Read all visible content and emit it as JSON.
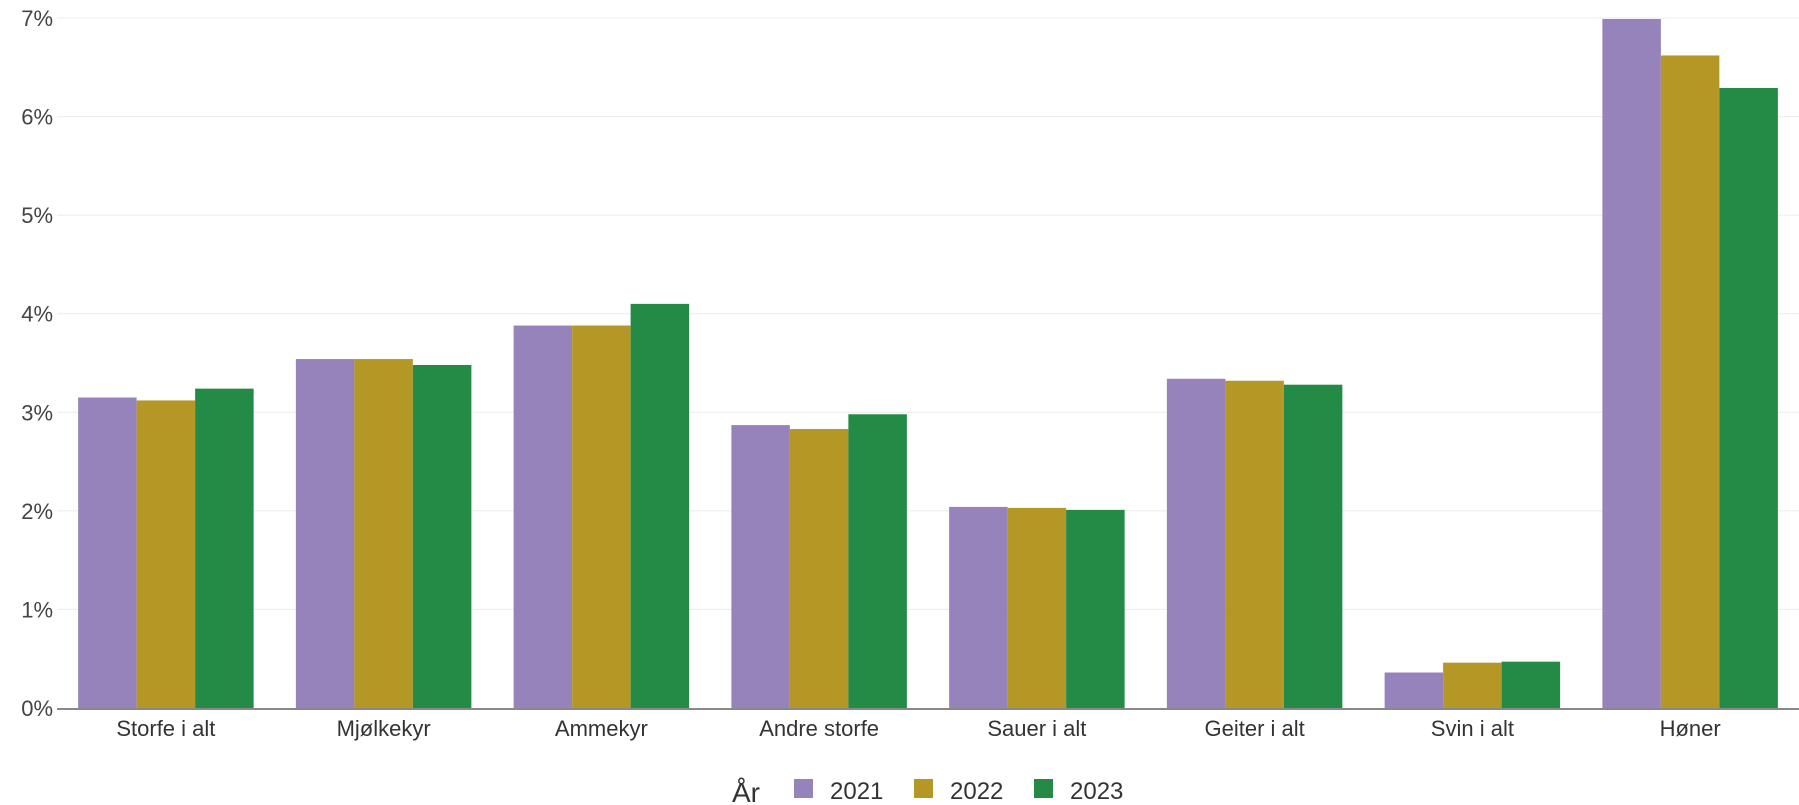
{
  "chart_data": {
    "type": "bar",
    "categories": [
      "Storfe i alt",
      "Mjølkekyr",
      "Ammekyr",
      "Andre storfe",
      "Sauer i alt",
      "Geiter i alt",
      "Svin i alt",
      "Høner"
    ],
    "series": [
      {
        "name": "2021",
        "color": "#9683bc",
        "values": [
          3.15,
          3.54,
          3.88,
          2.87,
          2.04,
          3.34,
          0.36,
          6.99
        ]
      },
      {
        "name": "2022",
        "color": "#b59726",
        "values": [
          3.12,
          3.54,
          3.88,
          2.83,
          2.03,
          3.32,
          0.46,
          6.62
        ]
      },
      {
        "name": "2023",
        "color": "#248b47",
        "values": [
          3.24,
          3.48,
          4.1,
          2.98,
          2.01,
          3.28,
          0.47,
          6.29
        ]
      }
    ],
    "ylim": [
      0,
      7
    ],
    "yticks": [
      "0%",
      "1%",
      "2%",
      "3%",
      "4%",
      "5%",
      "6%",
      "7%"
    ],
    "grid": true,
    "legend": {
      "title": "År",
      "placement": "bottom"
    },
    "xlabel": "",
    "ylabel": ""
  }
}
